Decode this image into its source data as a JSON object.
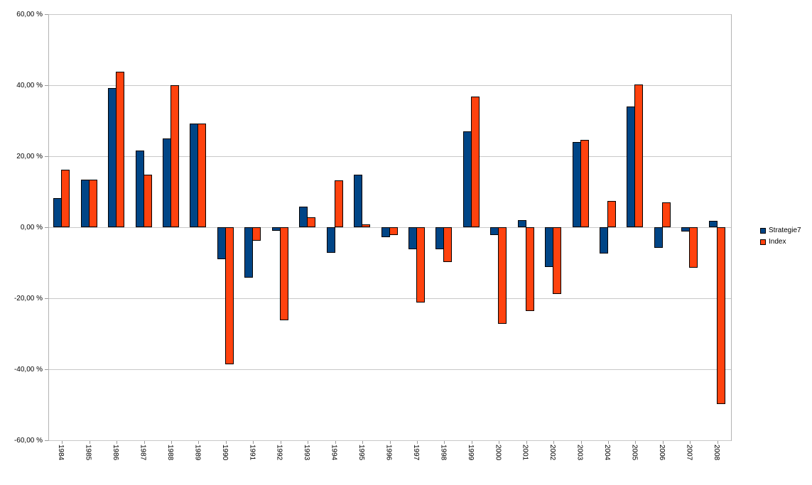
{
  "chart_data": {
    "type": "bar",
    "title": "",
    "xlabel": "",
    "ylabel": "",
    "categories": [
      "1984",
      "1985",
      "1986",
      "1987",
      "1988",
      "1989",
      "1990",
      "1991",
      "1992",
      "1993",
      "1994",
      "1995",
      "1996",
      "1997",
      "1998",
      "1999",
      "2000",
      "2001",
      "2002",
      "2003",
      "2004",
      "2005",
      "2006",
      "2007",
      "2008"
    ],
    "series": [
      {
        "name": "Strategie7",
        "color": "#004586",
        "values": [
          8.3,
          13.4,
          39.2,
          21.7,
          25.1,
          29.2,
          -8.9,
          -14.1,
          -1.0,
          5.8,
          -7.2,
          14.9,
          -2.8,
          -6.1,
          -6.1,
          27.1,
          -2.1,
          2.0,
          -11.1,
          24.0,
          -7.3,
          34.1,
          -5.7,
          -1.1,
          1.9
        ]
      },
      {
        "name": "Index",
        "color": "#FF420E",
        "values": [
          16.3,
          13.4,
          43.8,
          14.8,
          40.0,
          29.2,
          -38.6,
          -3.7,
          -26.2,
          2.9,
          13.2,
          0.8,
          -2.1,
          -21.2,
          -9.7,
          36.8,
          -27.1,
          -23.5,
          -18.7,
          24.6,
          7.5,
          40.3,
          7.0,
          -11.3,
          -49.7
        ]
      }
    ],
    "ylim": [
      -60,
      60
    ],
    "ytick_step": 20,
    "ytick_labels": [
      "60,00 %",
      "40,00 %",
      "20,00 %",
      "0,00 %",
      "-20,00 %",
      "-40,00 %",
      "-60,00 %"
    ],
    "grid": true,
    "legend_position": "right"
  },
  "legend": {
    "items": [
      "Strategie7",
      "Index"
    ]
  },
  "colors": {
    "series_strategie7": "#004586",
    "series_index": "#FF420E",
    "bar_border": "#000000",
    "gridline": "#c8c8c8",
    "axis": "#b3b3b3",
    "background": "#ffffff"
  }
}
